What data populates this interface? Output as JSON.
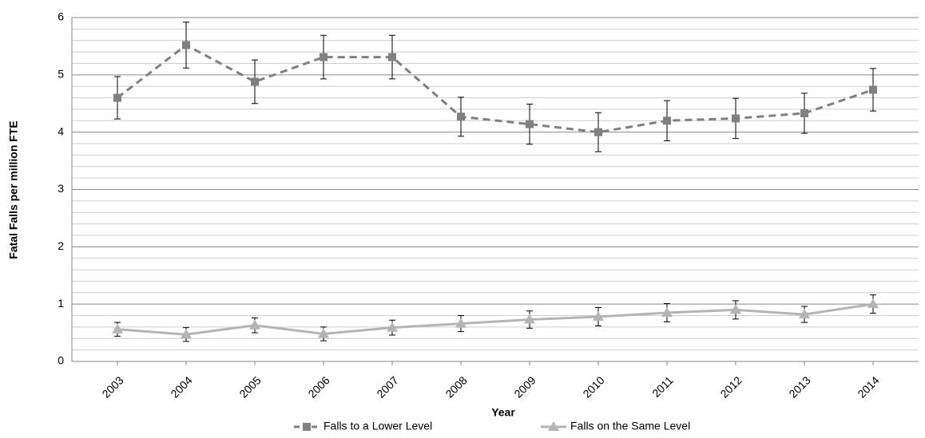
{
  "chart_data": {
    "type": "line",
    "y_label": "Fatal Falls per million FTE",
    "x_label": "Year",
    "categories": [
      "2003",
      "2004",
      "2005",
      "2006",
      "2007",
      "2008",
      "2009",
      "2010",
      "2011",
      "2012",
      "2013",
      "2014"
    ],
    "series": [
      {
        "name": "Falls to a Lower Level",
        "color": "#808080",
        "dashed": true,
        "marker": "square",
        "values": [
          4.6,
          5.52,
          4.88,
          5.31,
          5.31,
          4.27,
          4.14,
          4.0,
          4.2,
          4.24,
          4.33,
          4.74
        ],
        "errors": [
          0.37,
          0.4,
          0.38,
          0.38,
          0.38,
          0.34,
          0.35,
          0.34,
          0.35,
          0.35,
          0.35,
          0.37
        ]
      },
      {
        "name": "Falls on the Same Level",
        "color": "#b4b4b4",
        "dashed": false,
        "marker": "triangle",
        "values": [
          0.56,
          0.47,
          0.63,
          0.48,
          0.59,
          0.66,
          0.73,
          0.78,
          0.85,
          0.9,
          0.82,
          1.0
        ],
        "errors": [
          0.12,
          0.12,
          0.13,
          0.12,
          0.13,
          0.14,
          0.15,
          0.16,
          0.16,
          0.16,
          0.14,
          0.16
        ]
      }
    ],
    "ylim": [
      0,
      6
    ],
    "yticks": [
      0,
      1,
      2,
      3,
      4,
      5,
      6
    ],
    "grid": true,
    "minor_grid": true,
    "legend": "bottom"
  }
}
